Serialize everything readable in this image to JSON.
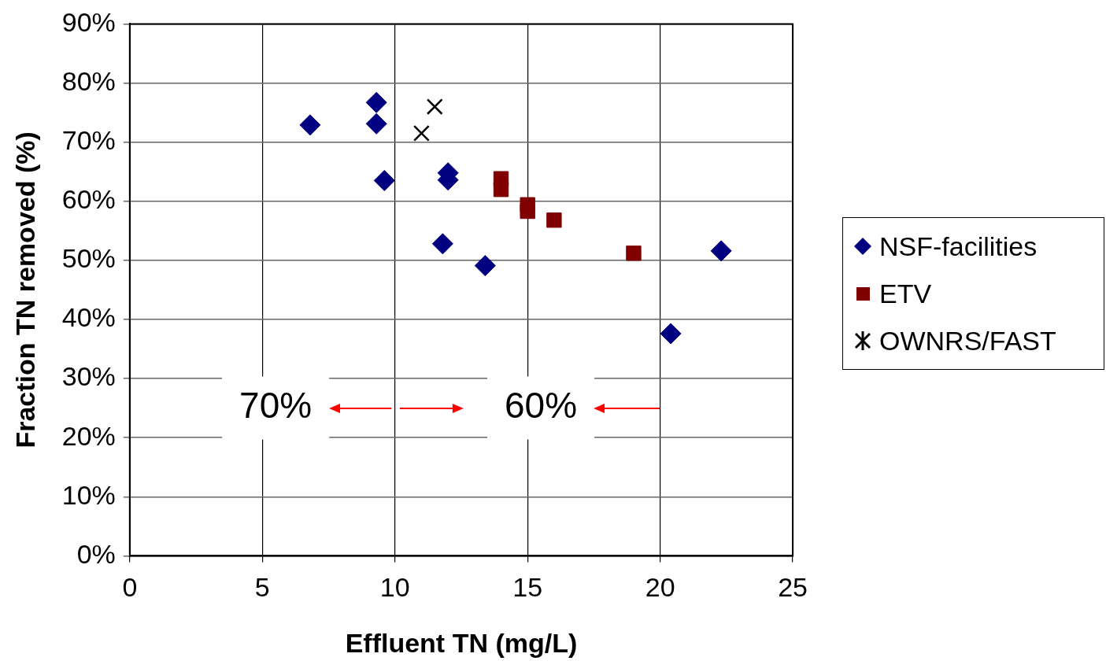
{
  "chart_data": {
    "type": "scatter",
    "xlabel": "Effluent TN (mg/L)",
    "ylabel": "Fraction TN removed (%)",
    "xlim": [
      0,
      25
    ],
    "xticks": [
      0,
      5,
      10,
      15,
      20,
      25
    ],
    "ylim": [
      0,
      90
    ],
    "yticks": [
      {
        "value": 0,
        "label": "0%"
      },
      {
        "value": 10,
        "label": "10%"
      },
      {
        "value": 20,
        "label": "20%"
      },
      {
        "value": 30,
        "label": "30%"
      },
      {
        "value": 40,
        "label": "40%"
      },
      {
        "value": 50,
        "label": "50%"
      },
      {
        "value": 60,
        "label": "60%"
      },
      {
        "value": 70,
        "label": "70%"
      },
      {
        "value": 80,
        "label": "80%"
      },
      {
        "value": 90,
        "label": "90%"
      }
    ],
    "grid": true,
    "legend": "right",
    "series": [
      {
        "name": "NSF-facilities",
        "color": "#000080",
        "marker": "diamond",
        "x": [
          6.8,
          9.3,
          9.3,
          9.6,
          12.0,
          12.0,
          11.8,
          13.4,
          20.4,
          22.3
        ],
        "values": [
          72.9,
          76.7,
          73.1,
          63.5,
          64.8,
          63.6,
          52.8,
          49.1,
          37.6,
          51.6
        ]
      },
      {
        "name": "ETV",
        "color": "#800000",
        "marker": "square",
        "x": [
          14.0,
          14.0,
          15.0,
          15.0,
          16.0,
          19.0
        ],
        "values": [
          63.8,
          62.0,
          59.4,
          58.3,
          56.8,
          51.2
        ]
      },
      {
        "name": "OWNRS/FAST",
        "color": "#000000",
        "marker": "cross",
        "x": [
          11.5,
          11.0
        ],
        "values": [
          76.0,
          71.5
        ]
      }
    ],
    "annotations": [
      "70%",
      "60%"
    ]
  }
}
